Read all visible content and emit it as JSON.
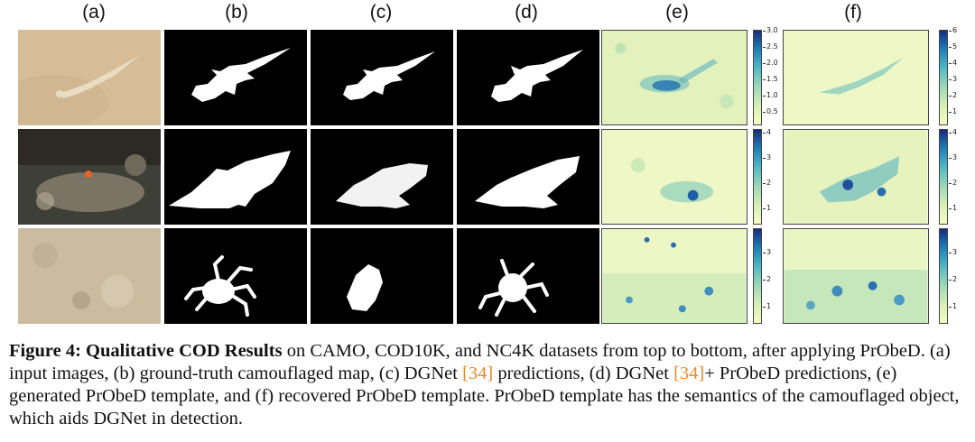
{
  "columns": [
    "(a)",
    "(b)",
    "(c)",
    "(d)",
    "(e)",
    "(f)"
  ],
  "colorbars": [
    {
      "e": [
        "3.0",
        "2.5",
        "2.0",
        "1.5",
        "1.0",
        "0.5"
      ],
      "f": [
        "6",
        "5",
        "4",
        "3",
        "2",
        "1"
      ]
    },
    {
      "e": [
        "4",
        "3",
        "2",
        "1"
      ],
      "f": [
        "4",
        "3",
        "2",
        "1"
      ]
    },
    {
      "e": [
        "3",
        "2",
        "1"
      ],
      "f": [
        "3",
        "2",
        "1"
      ]
    }
  ],
  "caption": {
    "label": "Figure 4:",
    "title": "Qualitative COD Results",
    "part1": " on CAMO, COD10K, and NC4K datasets from top to bottom, after applying PrObeD. (a) input images, (b) ground-truth camouflaged map, (c) DGNet ",
    "ref1": "[34]",
    "part2": " predictions, (d) DGNet ",
    "ref2": "[34]",
    "part3": "+ PrObeD predictions, (e) generated PrObeD template, and (f) recovered PrObeD template. PrObeD template has the semantics of the camouflaged object, which aids DGNet in detection."
  },
  "colors": {
    "mask_bg": "#000000",
    "ref_color": "#e8892a",
    "heat_low": "#f7fcc2",
    "heat_high": "#172a80"
  }
}
